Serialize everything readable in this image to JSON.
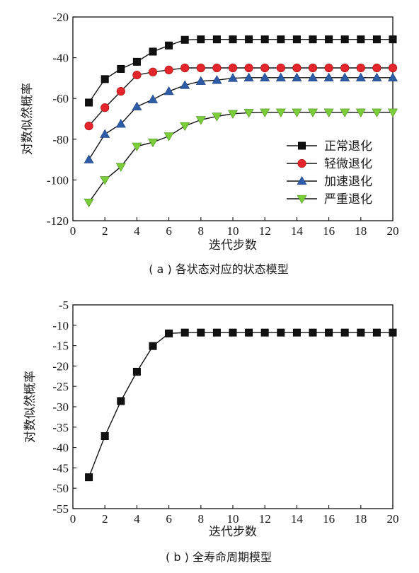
{
  "chart_data": [
    {
      "type": "line",
      "caption": "( a ) 各状态对应的状态模型",
      "xlabel": "迭代步数",
      "ylabel": "对数似然概率",
      "xlim": [
        0,
        20
      ],
      "ylim": [
        -120,
        -20
      ],
      "xticks": [
        0,
        2,
        4,
        6,
        8,
        10,
        12,
        14,
        16,
        18,
        20
      ],
      "yticks": [
        -20,
        -40,
        -60,
        -80,
        -100,
        -120
      ],
      "legend_position": "bottom-right",
      "x": [
        1,
        2,
        3,
        4,
        5,
        6,
        7,
        8,
        9,
        10,
        11,
        12,
        13,
        14,
        15,
        16,
        17,
        18,
        19,
        20
      ],
      "series": [
        {
          "name": "正常退化",
          "marker": "square",
          "color": "#111111",
          "values": [
            -62,
            -50.5,
            -45.5,
            -42,
            -37,
            -34,
            -31.2,
            -31,
            -31,
            -31,
            -31,
            -31,
            -31,
            -31,
            -31,
            -31,
            -31,
            -31,
            -31,
            -31
          ]
        },
        {
          "name": "轻微退化",
          "marker": "circle",
          "color": "#e4252b",
          "values": [
            -73.5,
            -64.5,
            -56.5,
            -48.5,
            -47,
            -46,
            -45,
            -45,
            -45,
            -45,
            -45,
            -45,
            -45,
            -45,
            -45,
            -45,
            -45,
            -45,
            -45,
            -45
          ]
        },
        {
          "name": "加速退化",
          "marker": "triangle-up",
          "color": "#2e5da8",
          "values": [
            -90,
            -77.5,
            -72.5,
            -64,
            -60.5,
            -56.5,
            -53.5,
            -51.5,
            -51,
            -50,
            -49.8,
            -49.8,
            -49.8,
            -49.8,
            -49.8,
            -49.8,
            -49.8,
            -49.8,
            -49.8,
            -49.8
          ]
        },
        {
          "name": "严重退化",
          "marker": "triangle-down",
          "color": "#7ccd3a",
          "values": [
            -111,
            -100,
            -93.5,
            -83.5,
            -81.5,
            -78.5,
            -73.5,
            -70.5,
            -68.8,
            -67.5,
            -67,
            -66.8,
            -66.8,
            -66.8,
            -66.8,
            -66.8,
            -66.8,
            -66.8,
            -66.8,
            -66.8
          ]
        }
      ]
    },
    {
      "type": "line",
      "caption": "( b ) 全寿命周期模型",
      "xlabel": "迭代步数",
      "ylabel": "对数似然概率",
      "xlim": [
        0,
        20
      ],
      "ylim": [
        -55,
        -5
      ],
      "xticks": [
        0,
        2,
        4,
        6,
        8,
        10,
        12,
        14,
        16,
        18,
        20
      ],
      "yticks": [
        -5,
        -10,
        -15,
        -20,
        -25,
        -30,
        -35,
        -40,
        -45,
        -50,
        -55
      ],
      "x": [
        1,
        2,
        3,
        4,
        5,
        6,
        7,
        8,
        9,
        10,
        11,
        12,
        13,
        14,
        15,
        16,
        17,
        18,
        19,
        20
      ],
      "series": [
        {
          "marker": "square",
          "color": "#111111",
          "values": [
            -47.3,
            -37.2,
            -28.6,
            -21.4,
            -15.1,
            -12,
            -11.8,
            -11.8,
            -11.8,
            -11.8,
            -11.8,
            -11.8,
            -11.8,
            -11.8,
            -11.8,
            -11.8,
            -11.8,
            -11.8,
            -11.8,
            -11.8
          ]
        }
      ]
    }
  ]
}
